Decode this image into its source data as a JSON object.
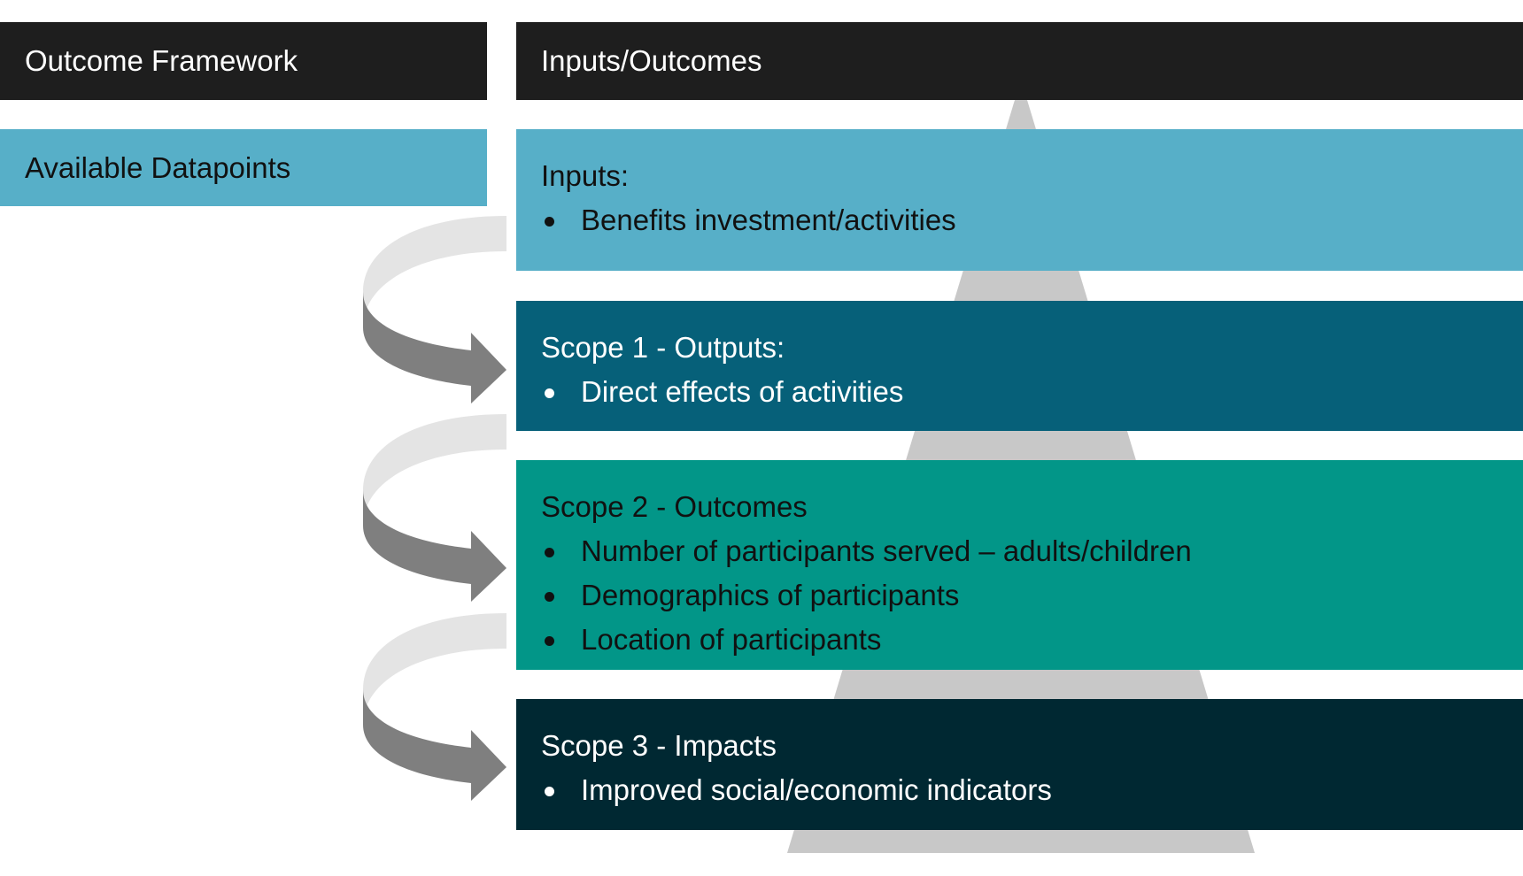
{
  "header": {
    "left_title": "Outcome Framework",
    "right_title": "Inputs/Outcomes"
  },
  "left": {
    "datapoints_label": "Available Datapoints"
  },
  "tiers": [
    {
      "title": "Inputs:",
      "bullets": [
        "Benefits investment/activities"
      ],
      "color": "#57afc8"
    },
    {
      "title": "Scope 1 - Outputs:",
      "bullets": [
        "Direct effects of activities"
      ],
      "color": "#066079"
    },
    {
      "title": "Scope 2 - Outcomes",
      "bullets": [
        "Number of participants served – adults/children",
        "Demographics of participants",
        "Location of participants"
      ],
      "color": "#029688"
    },
    {
      "title": "Scope 3 - Impacts",
      "bullets": [
        "Improved social/economic indicators"
      ],
      "color": "#002832"
    }
  ],
  "colors": {
    "header_bg": "#1e1e1e",
    "pyramid": "#c8c8c8",
    "arrow_light": "#e4e4e4",
    "arrow_dark": "#7f7f7f"
  },
  "icons": [
    "curved-arrow-icon",
    "curved-arrow-icon",
    "curved-arrow-icon"
  ]
}
